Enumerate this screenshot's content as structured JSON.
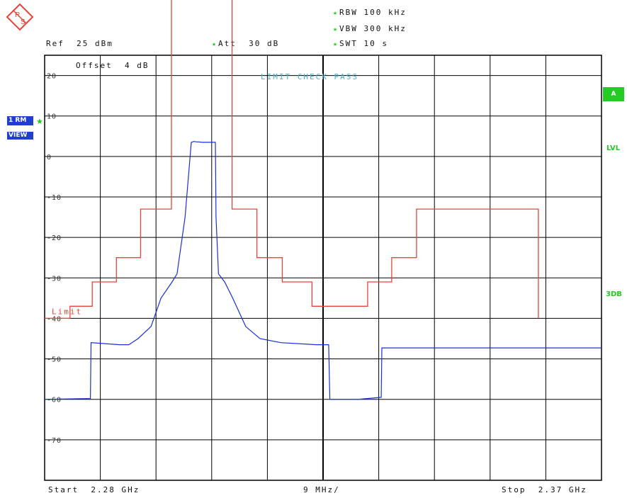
{
  "header": {
    "rbw": "RBW 100 kHz",
    "vbw": "VBW 300 kHz",
    "swt": "SWT 10 s",
    "ref": "Ref  25 dBm",
    "att": "Att  30 dB",
    "offset": "Offset  4 dB"
  },
  "badges": {
    "trace": "1 RM",
    "view": "VIEW",
    "a": "A",
    "lvl": "LVL",
    "db3": "3DB"
  },
  "footer": {
    "start": "Start  2.28 GHz",
    "span": "9 MHz/",
    "stop": "Stop  2.37 GHz"
  },
  "colors": {
    "trace": "#1a2fd6",
    "limit": "#e8443a",
    "grid": "#000000",
    "accent_green": "#22cc22",
    "check_text": "#4fb3c8"
  },
  "chart_data": {
    "type": "line",
    "title": "",
    "xlabel": "",
    "ylabel": "",
    "xlim": [
      2.28,
      2.37
    ],
    "ylim": [
      -80,
      25
    ],
    "x_unit": "GHz",
    "y_unit": "dBm",
    "yticks": [
      20,
      10,
      0,
      -10,
      -20,
      -30,
      -40,
      -50,
      -60,
      -70
    ],
    "ytick_labels": [
      "20",
      "10",
      "0",
      "-10",
      "-20",
      "-30",
      "-40",
      "-50",
      "-60",
      "-70"
    ],
    "grid": true,
    "limit_label": "Limit",
    "limit_check_text": "LIMIT CHECK   PASS",
    "series": [
      {
        "name": "",
        "role": "trace",
        "x": [
          2.28,
          2.2874,
          2.2875,
          2.2921,
          2.2936,
          2.2951,
          2.2972,
          2.2988,
          2.3006,
          2.3014,
          2.3027,
          2.3037,
          2.3041,
          2.3046,
          2.3049,
          2.3054,
          2.3076,
          2.3077,
          2.3081,
          2.3091,
          2.3104,
          2.3125,
          2.3148,
          2.3182,
          2.3239,
          2.3259,
          2.3261,
          2.3274,
          2.3307,
          2.3344,
          2.3345,
          2.37
        ],
        "y": [
          -60,
          -59.8,
          -46,
          -46.5,
          -46.5,
          -45,
          -42,
          -35,
          -31,
          -29,
          -15,
          3.5,
          3.7,
          3.6,
          3.6,
          3.5,
          3.5,
          -15,
          -29,
          -31,
          -35,
          -42,
          -45,
          -46,
          -46.5,
          -46.5,
          -60,
          -60,
          -60,
          -59.5,
          -47.3,
          -47.3
        ]
      },
      {
        "name": "",
        "role": "limit",
        "x": [
          2.28,
          2.2841,
          2.2841,
          2.2877,
          2.2877,
          2.2916,
          2.2916,
          2.2955,
          2.2955,
          2.3005,
          2.3005,
          2.3103,
          2.3103,
          2.3143,
          2.3143,
          2.3184,
          2.3184,
          2.3232,
          2.3232,
          2.3322,
          2.3322,
          2.3361,
          2.3361,
          2.3401,
          2.3401,
          2.3598,
          2.3598
        ],
        "y": [
          -40,
          -40,
          -37,
          -37,
          -31,
          -31,
          -25,
          -25,
          -13,
          -13,
          40,
          40,
          -13,
          -13,
          -25,
          -25,
          -31,
          -31,
          -37,
          -37,
          -31,
          -31,
          -25,
          -25,
          -13,
          -13,
          -40
        ]
      }
    ]
  }
}
